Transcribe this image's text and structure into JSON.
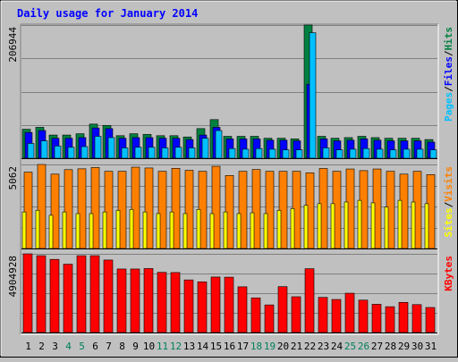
{
  "chart_data": {
    "type": "bar",
    "title": "Daily usage for January 2014",
    "categories": [
      "1",
      "2",
      "3",
      "4",
      "5",
      "6",
      "7",
      "8",
      "9",
      "10",
      "11",
      "12",
      "13",
      "14",
      "15",
      "16",
      "17",
      "18",
      "19",
      "20",
      "21",
      "22",
      "23",
      "24",
      "25",
      "26",
      "27",
      "28",
      "29",
      "30",
      "31"
    ],
    "weekend_days": [
      "4",
      "5",
      "11",
      "12",
      "18",
      "19",
      "25",
      "26"
    ],
    "panels": [
      {
        "id": "hits",
        "ymax_label": "206944",
        "ylim": [
          0,
          206944
        ],
        "grid": true,
        "ylabel_parts": [
          "Pages",
          "Files",
          "Hits"
        ],
        "ylabel_sep": " / ",
        "series": [
          {
            "name": "Hits",
            "values": [
              45000,
              48000,
              36000,
              36000,
              38000,
              53000,
              51000,
              35000,
              38000,
              37000,
              35000,
              35000,
              33000,
              46000,
              60000,
              34000,
              34000,
              34000,
              31000,
              31000,
              30000,
              206944,
              34000,
              31000,
              32000,
              34000,
              32000,
              31000,
              31000,
              31000,
              29000
            ]
          },
          {
            "name": "Files",
            "values": [
              40000,
              43000,
              31000,
              31000,
              32000,
              47000,
              46000,
              31000,
              32000,
              32000,
              31000,
              31000,
              29000,
              36000,
              48000,
              30000,
              30000,
              30000,
              28000,
              28000,
              27000,
              115000,
              30000,
              27000,
              28000,
              30000,
              28000,
              27000,
              27000,
              27000,
              25000
            ]
          },
          {
            "name": "Pages",
            "values": [
              23000,
              27000,
              19000,
              17000,
              18000,
              34000,
              32000,
              16000,
              17000,
              17000,
              16000,
              17000,
              16000,
              31000,
              43000,
              15000,
              14000,
              15000,
              14000,
              13000,
              13000,
              195000,
              16000,
              13000,
              14000,
              15000,
              14000,
              13000,
              14000,
              14000,
              13000
            ]
          }
        ]
      },
      {
        "id": "visits",
        "ymax_label": "5062",
        "ylim": [
          0,
          5062
        ],
        "grid": true,
        "ylabel_parts": [
          "Sites",
          "Visits"
        ],
        "ylabel_sep": " / ",
        "series": [
          {
            "name": "Visits",
            "values": [
              4600,
              5062,
              4480,
              4750,
              4800,
              4880,
              4650,
              4650,
              4900,
              4850,
              4650,
              4830,
              4710,
              4650,
              4950,
              4400,
              4650,
              4760,
              4650,
              4650,
              4650,
              4560,
              4820,
              4650,
              4790,
              4690,
              4790,
              4650,
              4480,
              4650,
              4450
            ]
          },
          {
            "name": "Sites",
            "values": [
              2200,
              2300,
              2000,
              2200,
              2100,
              2100,
              2200,
              2300,
              2350,
              2200,
              2100,
              2200,
              2100,
              2350,
              2100,
              2200,
              2100,
              2150,
              2100,
              2300,
              2400,
              2600,
              2700,
              2700,
              2800,
              2900,
              2750,
              2500,
              2900,
              2800,
              2700
            ]
          }
        ]
      },
      {
        "id": "kbytes",
        "ymax_label": "4904928",
        "ylim": [
          0,
          4904928
        ],
        "grid": true,
        "ylabel_parts": [
          "KBytes"
        ],
        "ylabel_sep": "",
        "series": [
          {
            "name": "KBytes",
            "values": [
              4904928,
              4790000,
              4560000,
              4260000,
              4790000,
              4790000,
              4520000,
              3960000,
              3960000,
              3990000,
              3750000,
              3740000,
              3280000,
              3160000,
              3460000,
              3450000,
              2850000,
              2160000,
              1720000,
              2860000,
              2230000,
              3980000,
              2190000,
              2060000,
              2450000,
              2020000,
              1760000,
              1610000,
              1880000,
              1740000,
              1560000
            ]
          }
        ]
      }
    ]
  },
  "colors": {
    "background": "#c0c0c0",
    "plot_background": "#c0c0c0",
    "title": "#0000ff",
    "weekday_label": "#000000",
    "weekend_label": "#00805c",
    "Hits": "#008040",
    "Files": "#0000ff",
    "Pages": "#00c0ff",
    "Visits": "#ff8000",
    "Sites": "#ffff00",
    "KBytes": "#ff0000",
    "separator": "#000000"
  }
}
